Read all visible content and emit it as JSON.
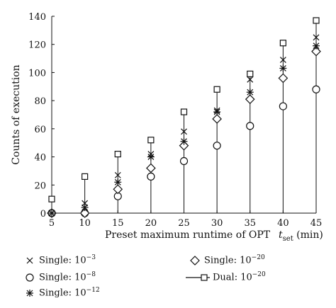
{
  "chart_data": {
    "type": "scatter",
    "xlabel": "Preset maximum runtime of OPT",
    "xunit_var": "t",
    "xunit_sub": "set",
    "xunit_tail": "(min)",
    "ylabel": "Counts of execution",
    "x": [
      5,
      10,
      15,
      20,
      25,
      30,
      35,
      40,
      45
    ],
    "xlim": [
      5,
      45
    ],
    "ylim": [
      0,
      140
    ],
    "xticks": [
      5,
      10,
      15,
      20,
      25,
      30,
      35,
      40,
      45
    ],
    "yticks": [
      0,
      20,
      40,
      60,
      80,
      100,
      120,
      140
    ],
    "grid": false,
    "legend_position": "bottom",
    "series": [
      {
        "name": "Single: 10",
        "exp": "−3",
        "marker": "x",
        "values": [
          0,
          7,
          27,
          42,
          58,
          73,
          95,
          109,
          125
        ]
      },
      {
        "name": "Single: 10",
        "exp": "−8",
        "marker": "circle",
        "values": [
          0,
          0,
          12,
          26,
          37,
          48,
          62,
          76,
          88
        ]
      },
      {
        "name": "Single: 10",
        "exp": "−12",
        "marker": "asterisk",
        "values": [
          0,
          4,
          22,
          40,
          51,
          72,
          86,
          103,
          119
        ]
      },
      {
        "name": "Single: 10",
        "exp": "−20",
        "marker": "diamond",
        "values": [
          0,
          0,
          17,
          32,
          48,
          67,
          81,
          96,
          115
        ]
      },
      {
        "name": "Dual: 10",
        "exp": "−20",
        "marker": "square-stem",
        "values": [
          10,
          26,
          42,
          52,
          72,
          88,
          99,
          121,
          137
        ]
      }
    ]
  }
}
